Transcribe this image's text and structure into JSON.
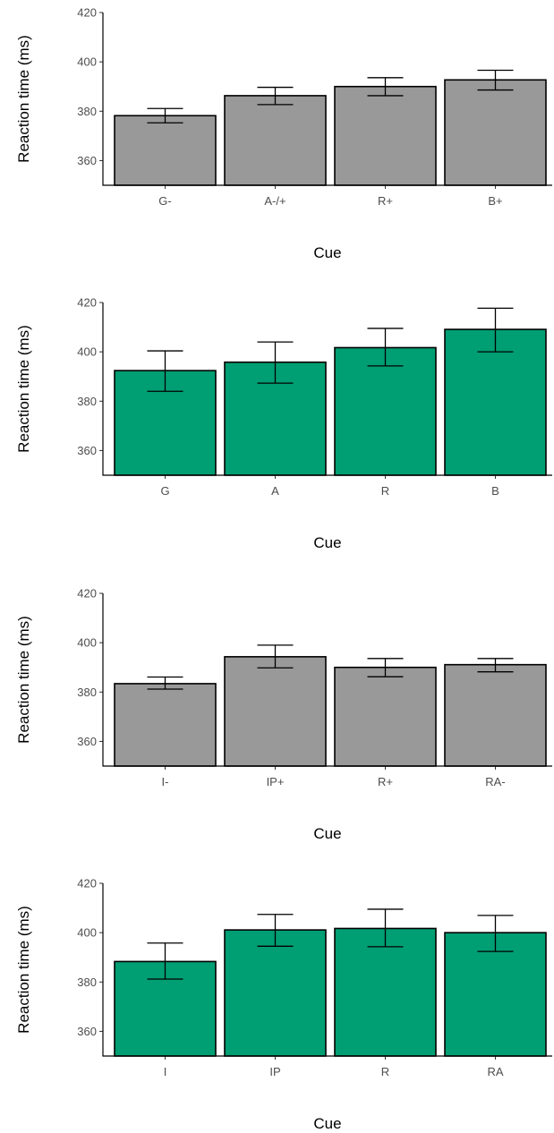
{
  "chart_data": [
    {
      "type": "bar",
      "xlabel": "Cue",
      "ylabel": "Reaction time (ms)",
      "categories": [
        "G-",
        "A-/+",
        "R+",
        "B+"
      ],
      "values": [
        378.2,
        386.3,
        390.0,
        392.7
      ],
      "error_low": [
        375.3,
        382.7,
        386.3,
        388.6
      ],
      "error_high": [
        381.1,
        389.7,
        393.6,
        396.6
      ],
      "ylim": [
        350,
        420
      ],
      "yticks": [
        360,
        380,
        400,
        420
      ],
      "fill_color": "#999999"
    },
    {
      "type": "bar",
      "xlabel": "Cue",
      "ylabel": "Reaction time (ms)",
      "categories": [
        "G",
        "A",
        "R",
        "B"
      ],
      "values": [
        392.4,
        395.8,
        401.7,
        409.1
      ],
      "error_low": [
        384.0,
        387.3,
        394.3,
        400.0
      ],
      "error_high": [
        400.4,
        404.0,
        409.5,
        417.7
      ],
      "ylim": [
        350,
        420
      ],
      "yticks": [
        360,
        380,
        400,
        420
      ],
      "fill_color": "#009E73"
    },
    {
      "type": "bar",
      "xlabel": "Cue",
      "ylabel": "Reaction time (ms)",
      "categories": [
        "I-",
        "IP+",
        "R+",
        "RA-"
      ],
      "values": [
        383.4,
        394.3,
        390.0,
        391.1
      ],
      "error_low": [
        381.2,
        389.8,
        386.2,
        388.2
      ],
      "error_high": [
        386.1,
        399.0,
        393.6,
        393.6
      ],
      "ylim": [
        350,
        420
      ],
      "yticks": [
        360,
        380,
        400,
        420
      ],
      "fill_color": "#999999"
    },
    {
      "type": "bar",
      "xlabel": "Cue",
      "ylabel": "Reaction time (ms)",
      "categories": [
        "I",
        "IP",
        "R",
        "RA"
      ],
      "values": [
        388.3,
        401.1,
        401.7,
        400.0
      ],
      "error_low": [
        381.2,
        394.5,
        394.3,
        392.4
      ],
      "error_high": [
        395.8,
        407.4,
        409.5,
        407.0
      ],
      "ylim": [
        350,
        420
      ],
      "yticks": [
        360,
        380,
        400,
        420
      ],
      "fill_color": "#009E73"
    }
  ]
}
